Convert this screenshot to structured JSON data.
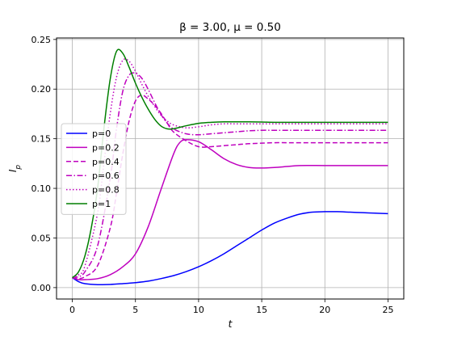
{
  "chart_data": {
    "type": "line",
    "title": "β = 3.00, μ = 0.50",
    "xlabel": "t",
    "ylabel": "I_p",
    "xlim": [
      -1.25,
      26.25
    ],
    "ylim": [
      -0.0115,
      0.2515
    ],
    "xticks": [
      0,
      5,
      10,
      15,
      20,
      25
    ],
    "xtick_labels": [
      "0",
      "5",
      "10",
      "15",
      "20",
      "25"
    ],
    "yticks": [
      0.0,
      0.05,
      0.1,
      0.15,
      0.2,
      0.25
    ],
    "ytick_labels": [
      "0.00",
      "0.05",
      "0.10",
      "0.15",
      "0.20",
      "0.25"
    ],
    "grid": true,
    "legend": {
      "position": "center-left"
    },
    "series": [
      {
        "name": "p=0",
        "color": "#0000ff",
        "dash": "solid",
        "x": [
          0,
          0.5,
          1,
          2,
          3,
          4,
          5,
          6,
          7,
          8,
          9,
          10,
          11,
          12,
          13,
          14,
          15,
          16,
          17,
          18,
          19,
          20,
          21,
          22,
          23,
          24,
          25
        ],
        "y": [
          0.01,
          0.006,
          0.004,
          0.003,
          0.0032,
          0.004,
          0.005,
          0.0065,
          0.009,
          0.012,
          0.016,
          0.021,
          0.027,
          0.034,
          0.042,
          0.05,
          0.058,
          0.065,
          0.07,
          0.074,
          0.076,
          0.0765,
          0.0765,
          0.076,
          0.0755,
          0.075,
          0.0745
        ]
      },
      {
        "name": "p=0.2",
        "color": "#bf00bf",
        "dash": "solid",
        "x": [
          0,
          0.5,
          1,
          2,
          3,
          4,
          5,
          6,
          7,
          8,
          8.5,
          9,
          10,
          11,
          12,
          13,
          14,
          15,
          16,
          17,
          18,
          20,
          22,
          25
        ],
        "y": [
          0.01,
          0.008,
          0.008,
          0.009,
          0.013,
          0.021,
          0.034,
          0.061,
          0.098,
          0.134,
          0.146,
          0.149,
          0.147,
          0.139,
          0.13,
          0.124,
          0.121,
          0.1205,
          0.121,
          0.122,
          0.123,
          0.123,
          0.123,
          0.123
        ]
      },
      {
        "name": "p=0.4",
        "color": "#bf00bf",
        "dash": "dashed",
        "x": [
          0,
          0.5,
          1,
          2,
          3,
          3.5,
          4,
          4.5,
          5,
          5.5,
          6,
          6.5,
          7,
          7.5,
          8,
          9,
          10,
          11,
          12,
          13,
          14,
          15,
          16,
          17,
          18,
          20,
          22,
          25
        ],
        "y": [
          0.01,
          0.009,
          0.011,
          0.022,
          0.06,
          0.095,
          0.135,
          0.168,
          0.188,
          0.194,
          0.19,
          0.184,
          0.176,
          0.166,
          0.157,
          0.148,
          0.142,
          0.142,
          0.143,
          0.144,
          0.145,
          0.1455,
          0.146,
          0.146,
          0.146,
          0.146,
          0.146,
          0.146
        ]
      },
      {
        "name": "p=0.6",
        "color": "#bf00bf",
        "dash": "dashdot",
        "x": [
          0,
          0.5,
          1,
          2,
          3,
          3.5,
          4,
          4.5,
          5,
          5.5,
          6,
          6.5,
          7,
          7.5,
          8,
          9,
          10,
          11,
          12,
          13,
          14,
          15,
          16,
          17,
          18,
          20,
          22,
          25
        ],
        "y": [
          0.01,
          0.011,
          0.016,
          0.042,
          0.11,
          0.16,
          0.198,
          0.214,
          0.216,
          0.211,
          0.2,
          0.187,
          0.175,
          0.166,
          0.16,
          0.155,
          0.154,
          0.155,
          0.156,
          0.157,
          0.158,
          0.1585,
          0.1585,
          0.1585,
          0.1585,
          0.1585,
          0.1585,
          0.1585
        ]
      },
      {
        "name": "p=0.8",
        "color": "#bf00bf",
        "dash": "dotted",
        "x": [
          0,
          0.5,
          1,
          2,
          2.5,
          3,
          3.5,
          4,
          4.5,
          5,
          5.5,
          6,
          6.5,
          7,
          7.5,
          8,
          9,
          10,
          11,
          12,
          13,
          14,
          15,
          16,
          17,
          18,
          20,
          22,
          25
        ],
        "y": [
          0.01,
          0.013,
          0.022,
          0.075,
          0.125,
          0.175,
          0.212,
          0.229,
          0.228,
          0.218,
          0.205,
          0.193,
          0.183,
          0.174,
          0.168,
          0.164,
          0.161,
          0.162,
          0.164,
          0.165,
          0.165,
          0.165,
          0.165,
          0.165,
          0.165,
          0.165,
          0.165,
          0.165,
          0.165
        ]
      },
      {
        "name": "p=1",
        "color": "#007f00",
        "dash": "solid",
        "x": [
          0,
          0.5,
          1,
          1.5,
          2,
          2.5,
          3,
          3.5,
          4,
          4.5,
          5,
          5.5,
          6,
          6.5,
          7,
          7.5,
          8,
          9,
          10,
          11,
          12,
          13,
          14,
          15,
          16,
          17,
          18,
          20,
          22,
          25
        ],
        "y": [
          0.01,
          0.016,
          0.032,
          0.06,
          0.1,
          0.16,
          0.21,
          0.238,
          0.236,
          0.222,
          0.206,
          0.192,
          0.18,
          0.17,
          0.163,
          0.16,
          0.16,
          0.163,
          0.1655,
          0.1665,
          0.167,
          0.167,
          0.167,
          0.1668,
          0.1665,
          0.1665,
          0.1665,
          0.1665,
          0.1665,
          0.1665
        ]
      }
    ]
  }
}
